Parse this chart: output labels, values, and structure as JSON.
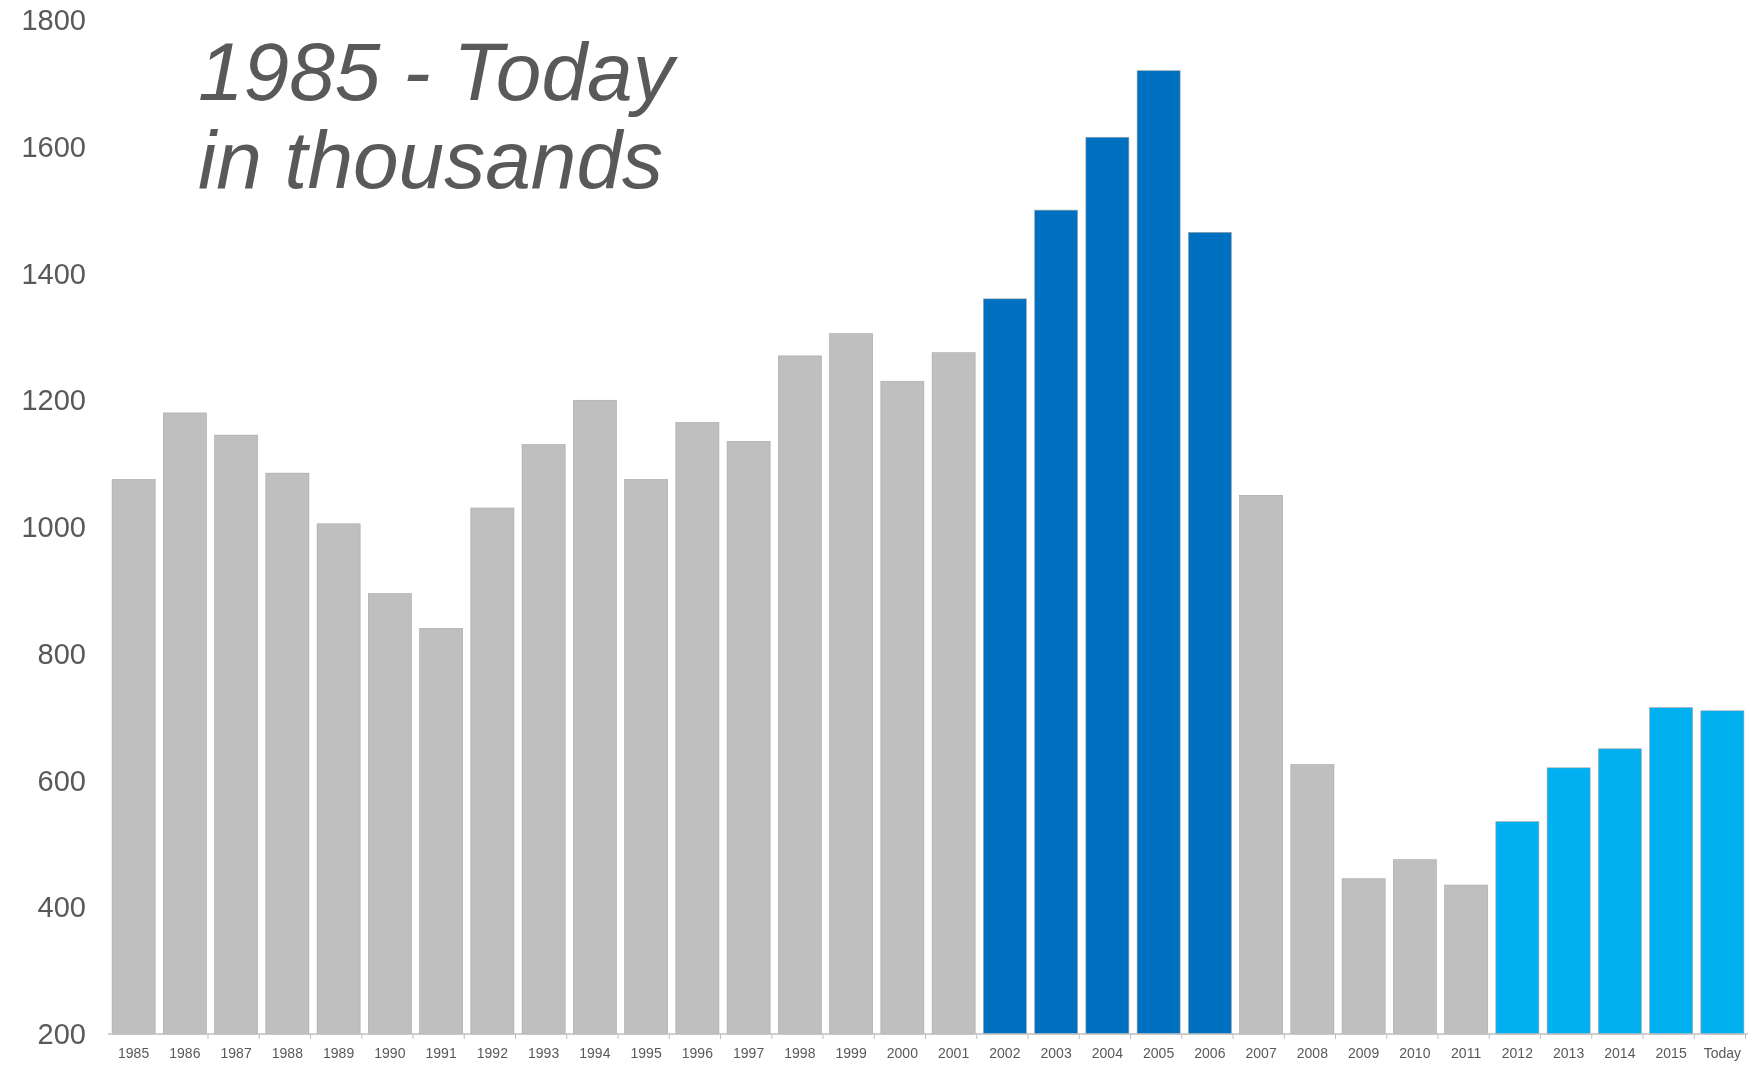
{
  "chart_data": {
    "type": "bar",
    "title": "1985 - Today\nin thousands",
    "categories": [
      "1985",
      "1986",
      "1987",
      "1988",
      "1989",
      "1990",
      "1991",
      "1992",
      "1993",
      "1994",
      "1995",
      "1996",
      "1997",
      "1998",
      "1999",
      "2000",
      "2001",
      "2002",
      "2003",
      "2004",
      "2005",
      "2006",
      "2007",
      "2008",
      "2009",
      "2010",
      "2011",
      "2012",
      "2013",
      "2014",
      "2015",
      "Today"
    ],
    "values": [
      1075,
      1180,
      1145,
      1085,
      1005,
      895,
      840,
      1030,
      1130,
      1200,
      1075,
      1165,
      1135,
      1270,
      1305,
      1230,
      1275,
      1360,
      1500,
      1615,
      1720,
      1465,
      1050,
      625,
      445,
      475,
      435,
      535,
      620,
      650,
      715,
      710
    ],
    "colors": [
      "#bfbfbf",
      "#bfbfbf",
      "#bfbfbf",
      "#bfbfbf",
      "#bfbfbf",
      "#bfbfbf",
      "#bfbfbf",
      "#bfbfbf",
      "#bfbfbf",
      "#bfbfbf",
      "#bfbfbf",
      "#bfbfbf",
      "#bfbfbf",
      "#bfbfbf",
      "#bfbfbf",
      "#bfbfbf",
      "#bfbfbf",
      "#0070c0",
      "#0070c0",
      "#0070c0",
      "#0070c0",
      "#0070c0",
      "#bfbfbf",
      "#bfbfbf",
      "#bfbfbf",
      "#bfbfbf",
      "#bfbfbf",
      "#00b0f0",
      "#00b0f0",
      "#00b0f0",
      "#00b0f0",
      "#00b0f0"
    ],
    "ylim": [
      200,
      1800
    ],
    "yticks": [
      200,
      400,
      600,
      800,
      1000,
      1200,
      1400,
      1600,
      1800
    ],
    "grid": false
  }
}
